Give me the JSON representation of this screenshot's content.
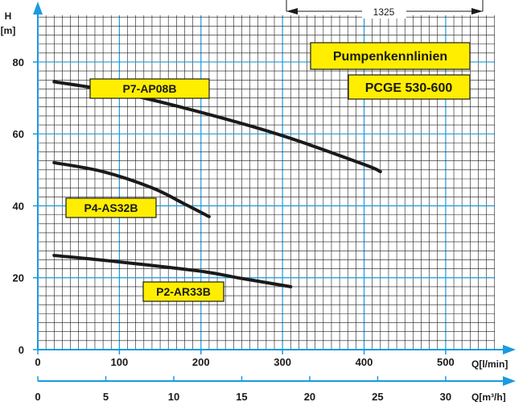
{
  "chart_data": {
    "type": "line",
    "title_lines": [
      "Pumpenkennlinien",
      "PCGE 530-600"
    ],
    "dimension_label": "1325",
    "y_axis": {
      "unit_top": "H",
      "unit_bottom": "[m]",
      "range": [
        0,
        95
      ],
      "ticks": [
        0,
        20,
        40,
        60,
        80
      ]
    },
    "x_axis_primary": {
      "label": "Q[l/min]",
      "range": [
        0,
        580
      ],
      "ticks": [
        0,
        100,
        200,
        300,
        400,
        500
      ]
    },
    "x_axis_secondary": {
      "label": "Q[m³/h]",
      "range": [
        0,
        34.8
      ],
      "ticks": [
        0,
        5,
        10,
        15,
        20,
        25,
        30
      ]
    },
    "grid": true,
    "colors": {
      "grid": "#1a9ae0",
      "curve": "#1a1a1a",
      "label_fill": "#ffee00",
      "axis": "#1a9ae0"
    },
    "series": [
      {
        "name": "P7-AP08B",
        "x": [
          20,
          100,
          200,
          300,
          400,
          420
        ],
        "y": [
          74.5,
          71.5,
          66,
          59.5,
          51.5,
          49.5
        ]
      },
      {
        "name": "P4-AS32B",
        "x": [
          20,
          80,
          140,
          180,
          210
        ],
        "y": [
          52,
          49.5,
          45,
          40.5,
          37
        ]
      },
      {
        "name": "P2-AR33B",
        "x": [
          20,
          100,
          200,
          250,
          310
        ],
        "y": [
          26.2,
          24.4,
          21.8,
          19.8,
          17.5
        ]
      }
    ]
  }
}
